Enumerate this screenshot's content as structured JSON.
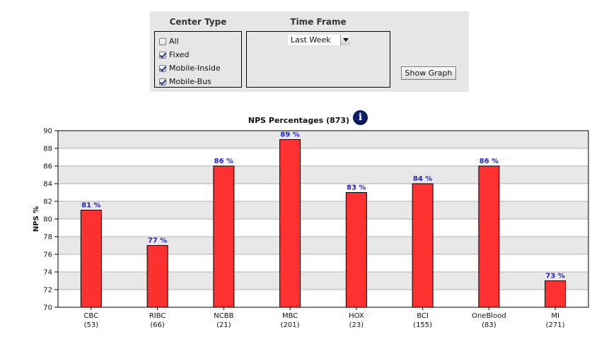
{
  "filters": {
    "center_type": {
      "header": "Center Type",
      "options": [
        {
          "label": "All",
          "checked": false
        },
        {
          "label": "Fixed",
          "checked": true
        },
        {
          "label": "Mobile-Inside",
          "checked": true
        },
        {
          "label": "Mobile-Bus",
          "checked": true
        }
      ]
    },
    "time_frame": {
      "header": "Time Frame",
      "selected": "Last Week"
    },
    "show_graph_label": "Show Graph"
  },
  "colors": {
    "bar": "#ff3030",
    "bar_outline": "#000000",
    "data_label": "#2424c8",
    "band": "#e8e8e8"
  },
  "chart_data": {
    "type": "bar",
    "title": "NPS Percentages (873)",
    "ylabel": "NPS %",
    "xlabel": "",
    "ylim": [
      70,
      90
    ],
    "ytick_step": 2,
    "grid": true,
    "legend": "none",
    "value_suffix": " %",
    "categories": [
      "CBC",
      "RIBC",
      "NCBB",
      "MBC",
      "HOX",
      "BCI",
      "OneBlood",
      "MI"
    ],
    "counts": [
      "(53)",
      "(66)",
      "(21)",
      "(201)",
      "(23)",
      "(155)",
      "(83)",
      "(271)"
    ],
    "values": [
      81,
      77,
      86,
      89,
      83,
      84,
      86,
      73
    ]
  }
}
